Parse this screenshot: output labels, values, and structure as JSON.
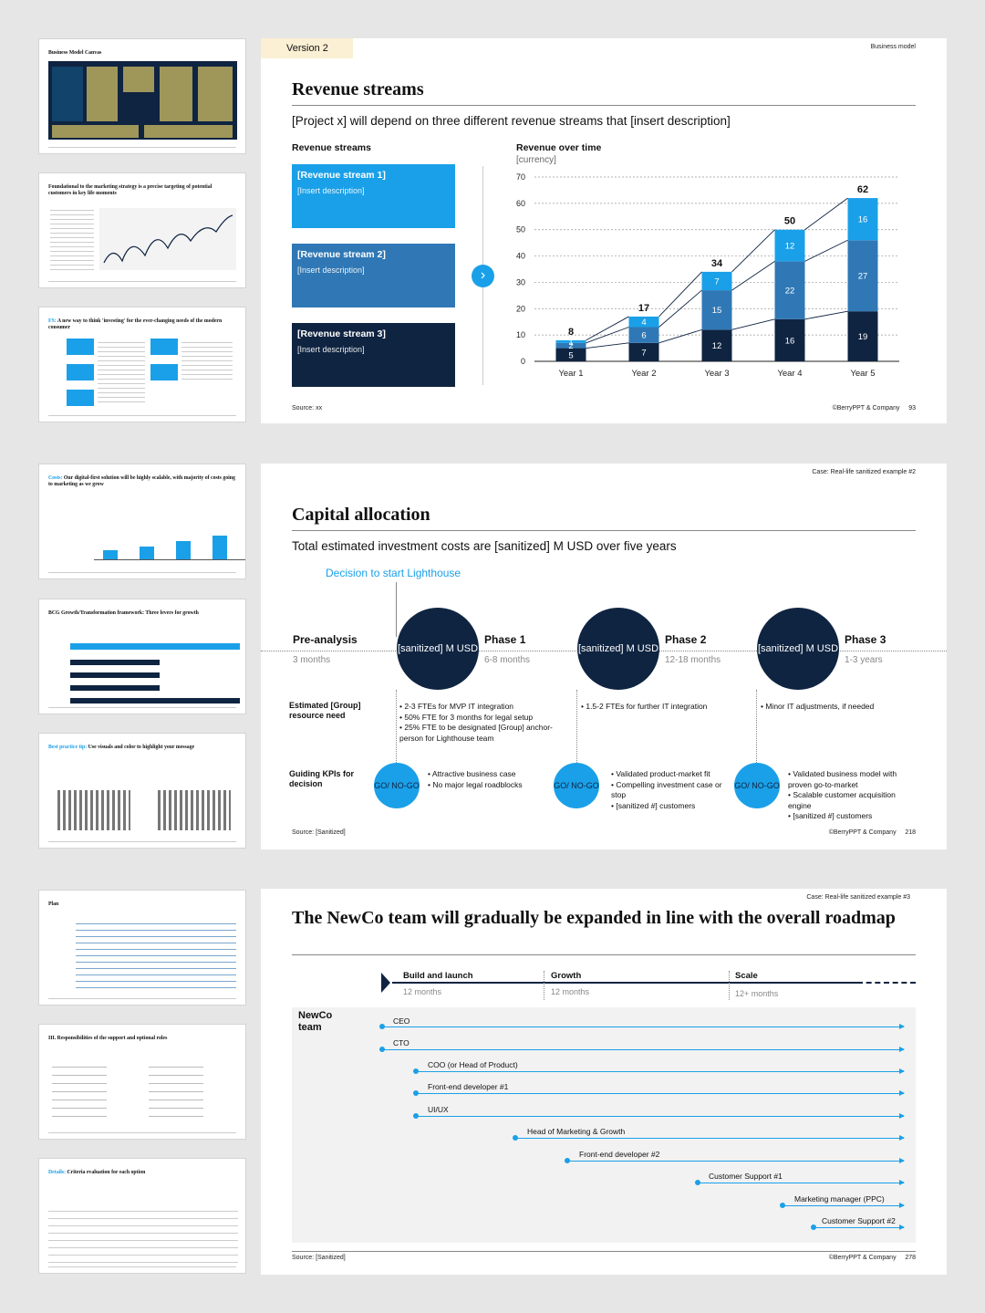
{
  "thumbnails": [
    {
      "title_pre": "",
      "title": "Business Model Canvas"
    },
    {
      "title_pre": "",
      "title": "Foundational to the marketing strategy is a precise targeting of potential customers in key life moments"
    },
    {
      "title_pre": "FS:",
      "title": "A new way to think 'investing' for the ever-changing needs of the modern consumer"
    },
    {
      "title_pre": "Costs:",
      "title": "Our digital-first solution will be highly scalable, with majority of costs going to marketing as we grow"
    },
    {
      "title_pre": "",
      "title": "BCG Growth/Transformation framework: Three levers for growth"
    },
    {
      "title_pre": "Best practice tip:",
      "title": "Use visuals and color to highlight your message"
    },
    {
      "title_pre": "",
      "title": "Plan"
    },
    {
      "title_pre": "",
      "title": "III. Responsibilities of the support and optional roles"
    },
    {
      "title_pre": "Details:",
      "title": "Criteria evaluation for each option"
    }
  ],
  "slide1": {
    "version_tag": "Version 2",
    "corner_label": "Business model",
    "title": "Revenue streams",
    "subtitle": "[Project x] will depend on three different revenue streams that [insert description]",
    "left_heading": "Revenue streams",
    "streams": [
      {
        "name": "[Revenue stream 1]",
        "desc": "[Insert description]",
        "color": "#1aa0e8"
      },
      {
        "name": "[Revenue stream 2]",
        "desc": "[Insert description]",
        "color": "#2f78b5"
      },
      {
        "name": "[Revenue stream 3]",
        "desc": "[Insert description]",
        "color": "#0f2441"
      }
    ],
    "chart_heading": "Revenue over time",
    "chart_unit": "[currency]",
    "source": "Source: xx",
    "copyright": "©BerryPPT & Company",
    "page": "93"
  },
  "chart_data": {
    "type": "bar",
    "stacked": true,
    "categories": [
      "Year 1",
      "Year 2",
      "Year 3",
      "Year 4",
      "Year 5"
    ],
    "series": [
      {
        "values": [
          5,
          7,
          12,
          16,
          19
        ],
        "color": "#0f2441"
      },
      {
        "values": [
          2,
          6,
          15,
          22,
          27
        ],
        "color": "#2f78b5"
      },
      {
        "values": [
          1,
          4,
          7,
          12,
          16
        ],
        "color": "#1aa0e8"
      }
    ],
    "totals": [
      8,
      17,
      34,
      50,
      62
    ],
    "ylim": [
      0,
      70
    ],
    "yticks": [
      0,
      10,
      20,
      30,
      40,
      50,
      60,
      70
    ],
    "grid": true,
    "xlabel": "",
    "ylabel": ""
  },
  "slide2": {
    "corner_label": "Case: Real-life sanitized example #2",
    "title": "Capital allocation",
    "subtitle": "Total estimated investment costs are [sanitized] M USD over five years",
    "decision": "Decision to start Lighthouse",
    "pre_label": "Pre-analysis",
    "pre_duration": "3 months",
    "phases": [
      {
        "circle": "[sanitized] M USD",
        "name": "Phase 1",
        "duration": "6-8 months"
      },
      {
        "circle": "[sanitized] M USD",
        "name": "Phase 2",
        "duration": "12-18 months"
      },
      {
        "circle": "[sanitized] M USD",
        "name": "Phase 3",
        "duration": "1-3 years"
      }
    ],
    "resource_label": "Estimated [Group] resource need",
    "resources": [
      [
        "2-3 FTEs for MVP IT integration",
        "50% FTE for 3 months for legal setup",
        "25% FTE to be designated [Group] anchor-person for Lighthouse team"
      ],
      [
        "1.5-2 FTEs for further IT integration"
      ],
      [
        "Minor IT adjustments, if needed"
      ]
    ],
    "kpi_label": "Guiding KPIs for decision",
    "gonogo": "GO/ NO-GO",
    "kpis": [
      [
        "Attractive business case",
        "No major legal roadblocks"
      ],
      [
        "Validated product-market fit",
        "Compelling investment case or stop",
        "[sanitized #] customers"
      ],
      [
        "Validated business model with proven go-to-market",
        "Scalable customer acquisition engine",
        "[sanitized #] customers"
      ]
    ],
    "source": "Source: [Sanitized]",
    "copyright": "©BerryPPT & Company",
    "page": "218"
  },
  "slide3": {
    "corner_label": "Case: Real-life sanitized example #3",
    "title": "The NewCo team will gradually be expanded in line with the overall roadmap",
    "stages": [
      {
        "name": "Build and launch",
        "duration": "12 months"
      },
      {
        "name": "Growth",
        "duration": "12 months"
      },
      {
        "name": "Scale",
        "duration": "12+ months"
      }
    ],
    "team_label": "NewCo team",
    "roles": [
      "CEO",
      "CTO",
      "COO (or Head of Product)",
      "Front-end developer #1",
      "UI/UX",
      "Head of Marketing & Growth",
      "Front-end developer #2",
      "Customer Support #1",
      "Marketing manager (PPC)",
      "Customer Support #2"
    ],
    "source": "Source: [Sanitized]",
    "copyright": "©BerryPPT & Company",
    "page": "278"
  }
}
